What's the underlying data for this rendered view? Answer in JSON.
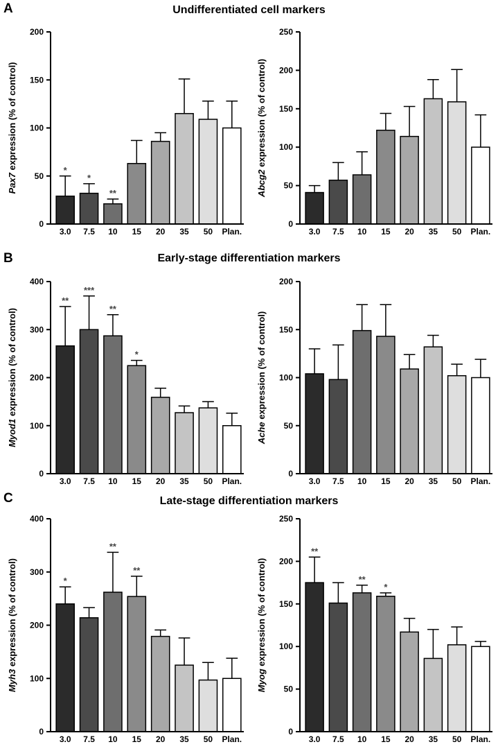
{
  "panels": [
    {
      "letter": "A",
      "title": "Undifferentiated cell markers"
    },
    {
      "letter": "B",
      "title": "Early-stage differentiation markers"
    },
    {
      "letter": "C",
      "title": "Late-stage differentiation markers"
    }
  ],
  "bar_colors": [
    "#2b2b2b",
    "#4a4a4a",
    "#6e6e6e",
    "#8a8a8a",
    "#a8a8a8",
    "#c4c4c4",
    "#dedede",
    "#ffffff"
  ],
  "chart_data": [
    {
      "type": "bar",
      "gene": "Pax7",
      "ylabel_suffix": " expression (% of control)",
      "categories": [
        "3.0",
        "7.5",
        "10",
        "15",
        "20",
        "35",
        "50",
        "Plan."
      ],
      "values": [
        29,
        32,
        21,
        63,
        86,
        115,
        109,
        100
      ],
      "errors": [
        21,
        10,
        5,
        24,
        9,
        36,
        19,
        28
      ],
      "significance": [
        "*",
        "*",
        "**",
        "",
        "",
        "",
        "",
        ""
      ],
      "ylim": [
        0,
        200
      ],
      "yticks": [
        0,
        50,
        100,
        150,
        200
      ]
    },
    {
      "type": "bar",
      "gene": "Abcg2",
      "ylabel_suffix": " expression (% of control)",
      "categories": [
        "3.0",
        "7.5",
        "10",
        "15",
        "20",
        "35",
        "50",
        "Plan."
      ],
      "values": [
        41,
        57,
        64,
        122,
        114,
        163,
        159,
        100
      ],
      "errors": [
        9,
        23,
        30,
        22,
        39,
        25,
        42,
        42
      ],
      "significance": [
        "",
        "",
        "",
        "",
        "",
        "",
        "",
        ""
      ],
      "ylim": [
        0,
        250
      ],
      "yticks": [
        0,
        50,
        100,
        150,
        200,
        250
      ]
    },
    {
      "type": "bar",
      "gene": "Myod1",
      "ylabel_suffix": " expression (% of control)",
      "categories": [
        "3.0",
        "7.5",
        "10",
        "15",
        "20",
        "35",
        "50",
        "Plan."
      ],
      "values": [
        266,
        300,
        287,
        225,
        159,
        127,
        137,
        100
      ],
      "errors": [
        82,
        70,
        44,
        11,
        19,
        14,
        13,
        26
      ],
      "significance": [
        "**",
        "***",
        "**",
        "*",
        "",
        "",
        "",
        ""
      ],
      "ylim": [
        0,
        400
      ],
      "yticks": [
        0,
        100,
        200,
        300,
        400
      ]
    },
    {
      "type": "bar",
      "gene": "Ache",
      "ylabel_suffix": " expression (% of control)",
      "categories": [
        "3.0",
        "7.5",
        "10",
        "15",
        "20",
        "35",
        "50",
        "Plan."
      ],
      "values": [
        104,
        98,
        149,
        143,
        109,
        132,
        102,
        100
      ],
      "errors": [
        26,
        36,
        27,
        33,
        15,
        12,
        12,
        19
      ],
      "significance": [
        "",
        "",
        "",
        "",
        "",
        "",
        "",
        ""
      ],
      "ylim": [
        0,
        200
      ],
      "yticks": [
        0,
        50,
        100,
        150,
        200
      ]
    },
    {
      "type": "bar",
      "gene": "Myh3",
      "ylabel_suffix": " expression (% of control)",
      "categories": [
        "3.0",
        "7.5",
        "10",
        "15",
        "20",
        "35",
        "50",
        "Plan."
      ],
      "values": [
        240,
        214,
        262,
        254,
        179,
        125,
        97,
        100
      ],
      "errors": [
        32,
        19,
        75,
        38,
        12,
        51,
        33,
        38
      ],
      "significance": [
        "*",
        "",
        "**",
        "**",
        "",
        "",
        "",
        ""
      ],
      "ylim": [
        0,
        400
      ],
      "yticks": [
        0,
        100,
        200,
        300,
        400
      ]
    },
    {
      "type": "bar",
      "gene": "Myog",
      "ylabel_suffix": " expression (% of control)",
      "categories": [
        "3.0",
        "7.5",
        "10",
        "15",
        "20",
        "35",
        "50",
        "Plan."
      ],
      "values": [
        175,
        151,
        163,
        159,
        117,
        86,
        102,
        100
      ],
      "errors": [
        30,
        24,
        9,
        4,
        16,
        34,
        21,
        6
      ],
      "significance": [
        "**",
        "",
        "**",
        "*",
        "",
        "",
        "",
        ""
      ],
      "ylim": [
        0,
        250
      ],
      "yticks": [
        0,
        50,
        100,
        150,
        200,
        250
      ]
    }
  ]
}
